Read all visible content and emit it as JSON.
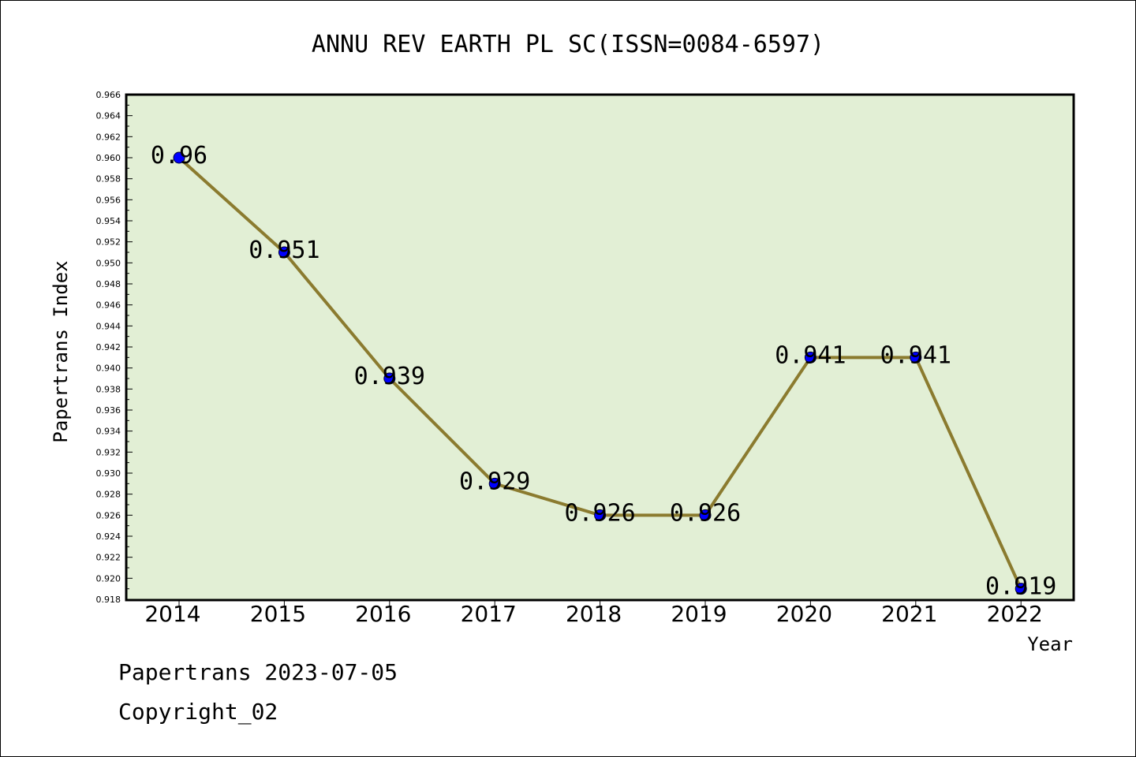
{
  "chart_data": {
    "type": "line",
    "title": "ANNU REV EARTH PL SC(ISSN=0084-6597)",
    "xlabel": "Year",
    "ylabel": "Papertrans Index",
    "categories": [
      "2014",
      "2015",
      "2016",
      "2017",
      "2018",
      "2019",
      "2020",
      "2021",
      "2022"
    ],
    "values": [
      0.96,
      0.951,
      0.939,
      0.929,
      0.926,
      0.926,
      0.941,
      0.941,
      0.919
    ],
    "value_labels": [
      "0.96",
      "0.951",
      "0.939",
      "0.929",
      "0.926",
      "0.926",
      "0.941",
      "0.941",
      "0.919"
    ],
    "ylim": [
      0.918,
      0.966
    ],
    "ytick_step": 0.002,
    "grid": false,
    "colors": {
      "plot_background": "#e2efd5",
      "line": "#8b7b2f",
      "marker": "#0000ff"
    }
  },
  "footer": {
    "line1": "Papertrans 2023-07-05",
    "line2": "Copyright_02"
  }
}
